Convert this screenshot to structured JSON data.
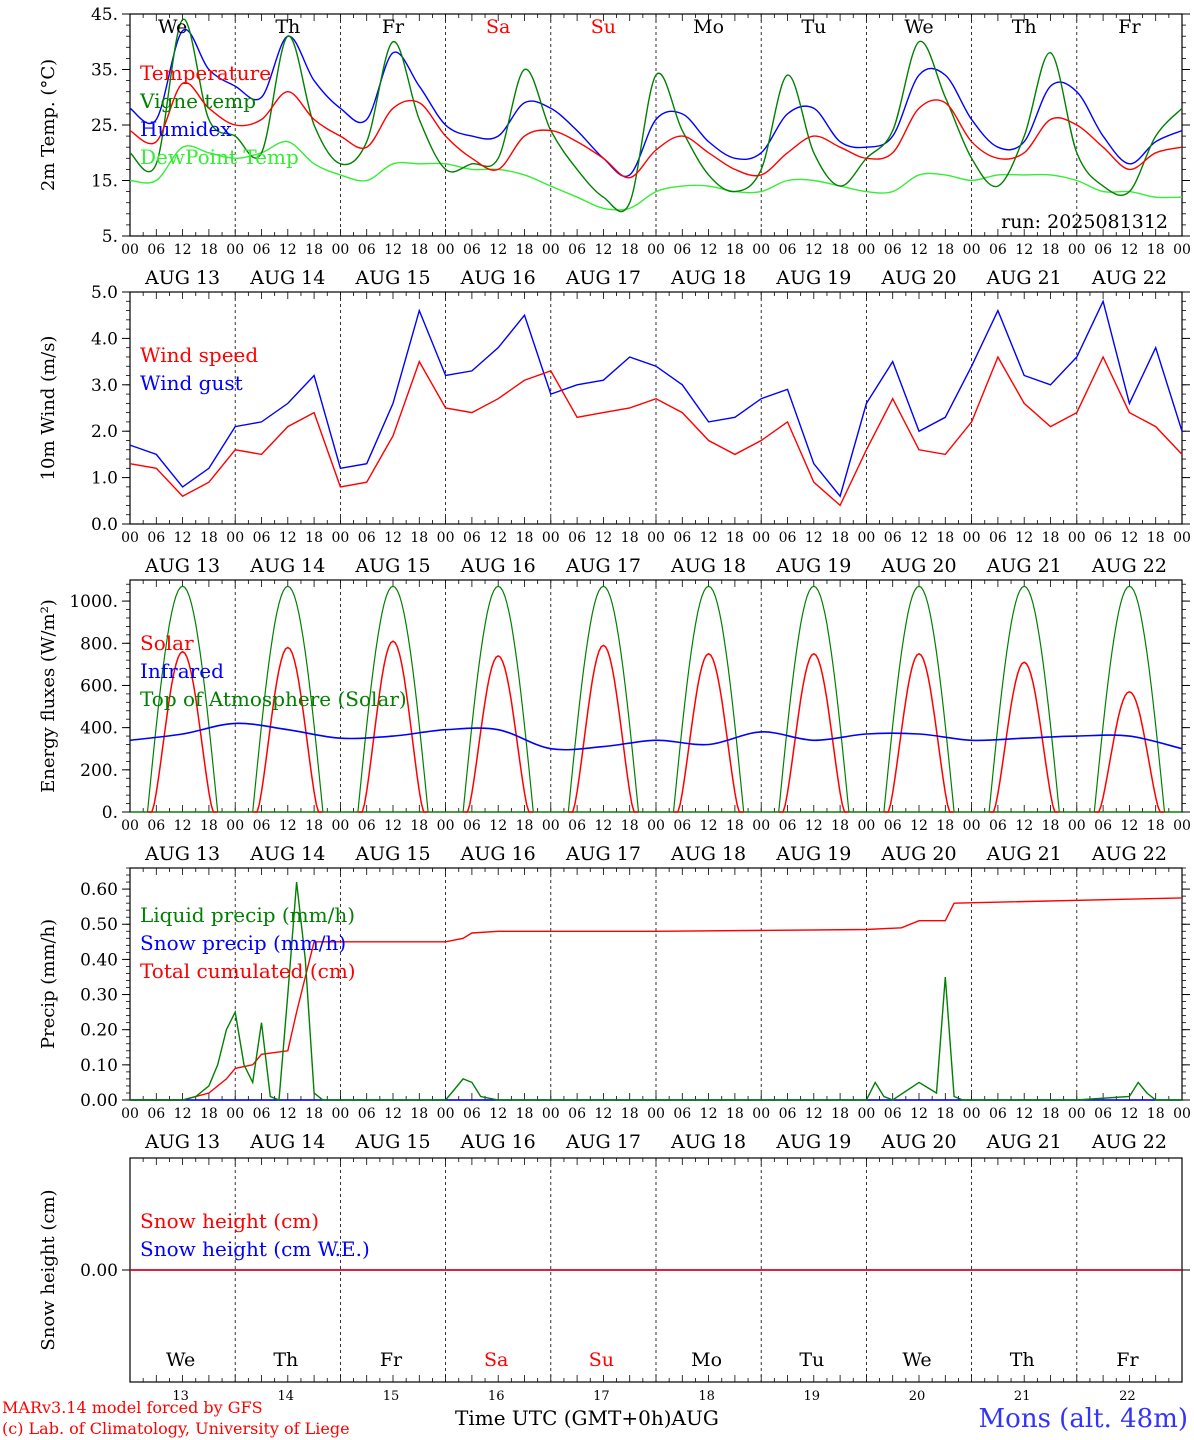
{
  "meta": {
    "run_label": "run: 2025081312",
    "model_line": "MARv3.14 model forced by GFS",
    "credit_line": "(c) Lab. of Climatology, University of Liege",
    "station": "Mons (alt. 48m)",
    "time_axis_label": "Time UTC (GMT+0h)",
    "month_label": "AUG"
  },
  "days": [
    {
      "dow": "We",
      "date": "AUG 13",
      "num": "13",
      "weekend": false
    },
    {
      "dow": "Th",
      "date": "AUG 14",
      "num": "14",
      "weekend": false
    },
    {
      "dow": "Fr",
      "date": "AUG 15",
      "num": "15",
      "weekend": false
    },
    {
      "dow": "Sa",
      "date": "AUG 16",
      "num": "16",
      "weekend": true
    },
    {
      "dow": "Su",
      "date": "AUG 17",
      "num": "17",
      "weekend": true
    },
    {
      "dow": "Mo",
      "date": "AUG 18",
      "num": "18",
      "weekend": false
    },
    {
      "dow": "Tu",
      "date": "AUG 19",
      "num": "19",
      "weekend": false
    },
    {
      "dow": "We",
      "date": "AUG 20",
      "num": "20",
      "weekend": false
    },
    {
      "dow": "Th",
      "date": "AUG 21",
      "num": "21",
      "weekend": false
    },
    {
      "dow": "Fr",
      "date": "AUG 22",
      "num": "22",
      "weekend": false
    }
  ],
  "hour_ticks": [
    "00",
    "06",
    "12",
    "18"
  ],
  "colors": {
    "red": "#ff0000",
    "green": "#008000",
    "blue": "#0000ff",
    "lightgreen": "#33ee33",
    "weekend": "#ff0000"
  },
  "chart_data": [
    {
      "id": "temp",
      "type": "line",
      "ylabel": "2m Temp. (°C)",
      "ylim": [
        5,
        45
      ],
      "yticks": [
        5,
        15,
        25,
        35,
        45
      ],
      "ytick_labels": [
        "5.",
        "15.",
        "25.",
        "35.",
        "45."
      ],
      "legend_position": "top-left",
      "series": [
        {
          "name": "Temperature",
          "color": "#ff0000",
          "x": [
            0,
            6,
            12,
            18,
            24,
            30,
            36,
            42,
            48,
            54,
            60,
            66,
            72,
            78,
            84,
            90,
            96,
            102,
            108,
            114,
            120,
            126,
            132,
            138,
            144,
            150,
            156,
            162,
            168,
            174,
            180,
            186,
            192,
            198,
            204,
            210,
            216,
            222,
            228,
            234,
            240
          ],
          "values": [
            24,
            22,
            32.5,
            28,
            25,
            26,
            31,
            26,
            23,
            21,
            28,
            29,
            23,
            19,
            17,
            23,
            24,
            22,
            19,
            15.5,
            20.5,
            23,
            20,
            17,
            16,
            20,
            23,
            21,
            19,
            20,
            28,
            29,
            22,
            19,
            20,
            26,
            25,
            21,
            17,
            20,
            21
          ]
        },
        {
          "name": "Vigne temp",
          "color": "#008000",
          "x": [
            0,
            6,
            12,
            18,
            24,
            30,
            36,
            42,
            48,
            54,
            60,
            66,
            72,
            78,
            84,
            90,
            96,
            102,
            108,
            114,
            120,
            126,
            132,
            138,
            144,
            150,
            156,
            162,
            168,
            174,
            180,
            186,
            192,
            198,
            204,
            210,
            216,
            222,
            228,
            234,
            240
          ],
          "values": [
            20,
            18,
            44,
            26,
            23,
            20,
            41,
            25,
            18,
            22,
            40,
            26,
            17,
            18,
            19,
            35,
            24,
            17,
            12,
            11,
            34,
            24,
            16,
            13,
            17,
            34,
            20,
            14,
            19,
            24,
            40,
            30,
            19,
            14,
            23,
            38,
            20,
            14,
            13,
            23,
            28
          ]
        },
        {
          "name": "Humidex",
          "color": "#0000ff",
          "x": [
            0,
            6,
            12,
            18,
            24,
            30,
            36,
            42,
            48,
            54,
            60,
            66,
            72,
            78,
            84,
            90,
            96,
            102,
            108,
            114,
            120,
            126,
            132,
            138,
            144,
            150,
            156,
            162,
            168,
            174,
            180,
            186,
            192,
            198,
            204,
            210,
            216,
            222,
            228,
            234,
            240
          ],
          "values": [
            28,
            26,
            42,
            35,
            32,
            30,
            41,
            33,
            28,
            26,
            38,
            32,
            25,
            23,
            23,
            29,
            28,
            24,
            19,
            16,
            26,
            27,
            22,
            19,
            20,
            27,
            28,
            22,
            21,
            23,
            34,
            34,
            26,
            21,
            22,
            32,
            31,
            23,
            18,
            22,
            24
          ]
        },
        {
          "name": "DewPoint Temp",
          "color": "#33ee33",
          "x": [
            0,
            6,
            12,
            18,
            24,
            30,
            36,
            42,
            48,
            54,
            60,
            66,
            72,
            78,
            84,
            90,
            96,
            102,
            108,
            114,
            120,
            126,
            132,
            138,
            144,
            150,
            156,
            162,
            168,
            174,
            180,
            186,
            192,
            198,
            204,
            210,
            216,
            222,
            228,
            234,
            240
          ],
          "values": [
            15,
            15,
            21,
            20,
            19,
            20,
            22,
            18,
            16,
            15,
            18,
            18,
            18,
            17,
            17,
            16,
            14,
            12,
            10,
            10,
            13,
            14,
            14,
            13,
            13,
            15,
            15,
            14,
            13,
            13,
            16,
            16,
            15,
            16,
            16,
            16,
            15,
            13,
            13,
            12,
            12
          ]
        }
      ]
    },
    {
      "id": "wind",
      "type": "line",
      "ylabel": "10m Wind (m/s)",
      "ylim": [
        0,
        5
      ],
      "yticks": [
        0,
        1,
        2,
        3,
        4,
        5
      ],
      "ytick_labels": [
        "0.0",
        "1.0",
        "2.0",
        "3.0",
        "4.0",
        "5.0"
      ],
      "legend_position": "top-left",
      "series": [
        {
          "name": "Wind speed",
          "color": "#ff0000",
          "x": [
            0,
            6,
            12,
            18,
            24,
            30,
            36,
            42,
            48,
            54,
            60,
            66,
            72,
            78,
            84,
            90,
            96,
            102,
            108,
            114,
            120,
            126,
            132,
            138,
            144,
            150,
            156,
            162,
            168,
            174,
            180,
            186,
            192,
            198,
            204,
            210,
            216,
            222,
            228,
            234,
            240
          ],
          "values": [
            1.3,
            1.2,
            0.6,
            0.9,
            1.6,
            1.5,
            2.1,
            2.4,
            0.8,
            0.9,
            1.9,
            3.5,
            2.5,
            2.4,
            2.7,
            3.1,
            3.3,
            2.3,
            2.4,
            2.5,
            2.7,
            2.4,
            1.8,
            1.5,
            1.8,
            2.2,
            0.9,
            0.4,
            1.6,
            2.7,
            1.6,
            1.5,
            2.2,
            3.6,
            2.6,
            2.1,
            2.4,
            3.6,
            2.4,
            2.1,
            1.5
          ]
        },
        {
          "name": "Wind gust",
          "color": "#0000ff",
          "x": [
            0,
            6,
            12,
            18,
            24,
            30,
            36,
            42,
            48,
            54,
            60,
            66,
            72,
            78,
            84,
            90,
            96,
            102,
            108,
            114,
            120,
            126,
            132,
            138,
            144,
            150,
            156,
            162,
            168,
            174,
            180,
            186,
            192,
            198,
            204,
            210,
            216,
            222,
            228,
            234,
            240
          ],
          "values": [
            1.7,
            1.5,
            0.8,
            1.2,
            2.1,
            2.2,
            2.6,
            3.2,
            1.2,
            1.3,
            2.6,
            4.6,
            3.2,
            3.3,
            3.8,
            4.5,
            2.8,
            3.0,
            3.1,
            3.6,
            3.4,
            3.0,
            2.2,
            2.3,
            2.7,
            2.9,
            1.3,
            0.6,
            2.6,
            3.5,
            2.0,
            2.3,
            3.4,
            4.6,
            3.2,
            3.0,
            3.6,
            4.8,
            2.6,
            3.8,
            2.0
          ]
        }
      ]
    },
    {
      "id": "energy",
      "type": "line",
      "ylabel": "Energy fluxes (W/m²)",
      "ylim": [
        0,
        1100
      ],
      "yticks": [
        0,
        200,
        400,
        600,
        800,
        1000
      ],
      "ytick_labels": [
        "0.",
        "200.",
        "400.",
        "600.",
        "800.",
        "1000."
      ],
      "legend_position": "top-left",
      "solar_peaks": [
        760,
        780,
        810,
        740,
        790,
        750,
        750,
        750,
        710,
        570
      ],
      "toa_peak": 1070,
      "series": [
        {
          "name": "Solar",
          "color": "#ff0000"
        },
        {
          "name": "Infrared",
          "color": "#0000ff",
          "x": [
            0,
            12,
            24,
            36,
            48,
            60,
            72,
            84,
            96,
            108,
            120,
            132,
            144,
            156,
            168,
            180,
            192,
            204,
            216,
            228,
            240
          ],
          "values": [
            340,
            370,
            420,
            390,
            350,
            360,
            390,
            390,
            300,
            310,
            340,
            320,
            380,
            340,
            370,
            370,
            340,
            350,
            360,
            360,
            300
          ]
        },
        {
          "name": "Top of Atmosphere (Solar)",
          "color": "#008000"
        }
      ]
    },
    {
      "id": "precip",
      "type": "line",
      "ylabel": "Precip (mm/h)",
      "ylim": [
        0,
        0.66
      ],
      "yticks": [
        0,
        0.1,
        0.2,
        0.3,
        0.4,
        0.5,
        0.6
      ],
      "ytick_labels": [
        "0.00",
        "0.10",
        "0.20",
        "0.30",
        "0.40",
        "0.50",
        "0.60"
      ],
      "legend_position": "top-left",
      "series": [
        {
          "name": "Liquid precip (mm/h)",
          "color": "#008000",
          "x": [
            0,
            12,
            15,
            18,
            20,
            22,
            24,
            26,
            28,
            30,
            32,
            34,
            36,
            38,
            40,
            42,
            44,
            48,
            72,
            74,
            76,
            78,
            80,
            84,
            96,
            168,
            170,
            172,
            174,
            180,
            184,
            186,
            188,
            190,
            192,
            216,
            228,
            230,
            232,
            234,
            240
          ],
          "values": [
            0,
            0,
            0.01,
            0.04,
            0.1,
            0.2,
            0.25,
            0.1,
            0.05,
            0.22,
            0.01,
            0,
            0.3,
            0.62,
            0.4,
            0.02,
            0,
            0,
            0,
            0.03,
            0.06,
            0.05,
            0.01,
            0,
            0,
            0,
            0.05,
            0.01,
            0,
            0.05,
            0.02,
            0.35,
            0.01,
            0,
            0,
            0,
            0.01,
            0.05,
            0.02,
            0,
            0
          ]
        },
        {
          "name": "Snow precip (mm/h)",
          "color": "#0000ff",
          "x": [
            0,
            240
          ],
          "values": [
            0,
            0
          ]
        },
        {
          "name": "Total cumulated (cm)",
          "color": "#ff0000",
          "x": [
            0,
            12,
            18,
            22,
            24,
            28,
            30,
            36,
            38,
            40,
            42,
            48,
            72,
            76,
            78,
            84,
            120,
            168,
            176,
            180,
            186,
            188,
            240
          ],
          "values": [
            0,
            0,
            0.02,
            0.06,
            0.09,
            0.1,
            0.13,
            0.14,
            0.25,
            0.35,
            0.45,
            0.45,
            0.45,
            0.46,
            0.475,
            0.48,
            0.48,
            0.485,
            0.49,
            0.51,
            0.51,
            0.56,
            0.575
          ]
        }
      ]
    },
    {
      "id": "snow",
      "type": "line",
      "ylabel": "Snow height (cm)",
      "ylim": [
        -1,
        1
      ],
      "yticks": [
        0
      ],
      "ytick_labels": [
        "0.00"
      ],
      "legend_position": "top-left",
      "series": [
        {
          "name": "Snow height (cm)",
          "color": "#ff0000",
          "x": [
            0,
            240
          ],
          "values": [
            0,
            0
          ]
        },
        {
          "name": "Snow height (cm W.E.)",
          "color": "#0000ff",
          "x": [
            0,
            240
          ],
          "values": [
            0,
            0
          ]
        }
      ]
    }
  ]
}
